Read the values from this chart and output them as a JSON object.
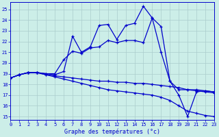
{
  "xlabel": "Graphe des températures (°c)",
  "background_color": "#cceee8",
  "grid_color": "#aacccc",
  "line_color": "#0000cc",
  "x_ticks": [
    0,
    1,
    2,
    3,
    4,
    5,
    6,
    7,
    8,
    9,
    10,
    11,
    12,
    13,
    14,
    15,
    16,
    17,
    18,
    19,
    20,
    21,
    22,
    23
  ],
  "y_ticks": [
    15,
    16,
    17,
    18,
    19,
    20,
    21,
    22,
    23,
    24,
    25
  ],
  "xlim": [
    0,
    23
  ],
  "ylim": [
    14.7,
    25.7
  ],
  "curves": [
    {
      "x": [
        0,
        1,
        2,
        3,
        4,
        5,
        6,
        7,
        8,
        9,
        10,
        11,
        12,
        13,
        14,
        15,
        16,
        17,
        18,
        19,
        20,
        21,
        22,
        23
      ],
      "y": [
        18.6,
        18.9,
        19.1,
        19.1,
        19.0,
        18.9,
        19.2,
        22.5,
        21.0,
        21.5,
        23.5,
        23.6,
        22.2,
        23.5,
        23.7,
        25.3,
        24.2,
        23.4,
        18.3,
        17.0,
        15.0,
        17.3,
        17.4,
        17.3
      ]
    },
    {
      "x": [
        0,
        1,
        2,
        3,
        4,
        5,
        6,
        7,
        8,
        9,
        10,
        11,
        12,
        13,
        14,
        15,
        16,
        17,
        18,
        19,
        20,
        21,
        22,
        23
      ],
      "y": [
        18.6,
        18.9,
        19.1,
        19.1,
        19.0,
        19.0,
        20.3,
        21.1,
        20.9,
        21.4,
        21.5,
        22.1,
        21.9,
        22.1,
        22.1,
        21.9,
        24.2,
        21.0,
        18.3,
        17.5,
        17.5,
        17.5,
        17.4,
        17.3
      ]
    },
    {
      "x": [
        0,
        1,
        2,
        3,
        4,
        5,
        6,
        7,
        8,
        9,
        10,
        11,
        12,
        13,
        14,
        15,
        16,
        17,
        18,
        19,
        20,
        21,
        22,
        23
      ],
      "y": [
        18.6,
        18.9,
        19.1,
        19.1,
        18.9,
        18.8,
        18.7,
        18.6,
        18.5,
        18.4,
        18.3,
        18.3,
        18.2,
        18.2,
        18.1,
        18.1,
        18.0,
        17.9,
        17.8,
        17.7,
        17.5,
        17.4,
        17.3,
        17.2
      ]
    },
    {
      "x": [
        0,
        1,
        2,
        3,
        4,
        5,
        6,
        7,
        8,
        9,
        10,
        11,
        12,
        13,
        14,
        15,
        16,
        17,
        18,
        19,
        20,
        21,
        22,
        23
      ],
      "y": [
        18.6,
        18.9,
        19.1,
        19.1,
        18.9,
        18.7,
        18.5,
        18.3,
        18.1,
        17.9,
        17.7,
        17.5,
        17.4,
        17.3,
        17.2,
        17.1,
        17.0,
        16.8,
        16.5,
        16.0,
        15.5,
        15.3,
        15.1,
        15.0
      ]
    }
  ]
}
